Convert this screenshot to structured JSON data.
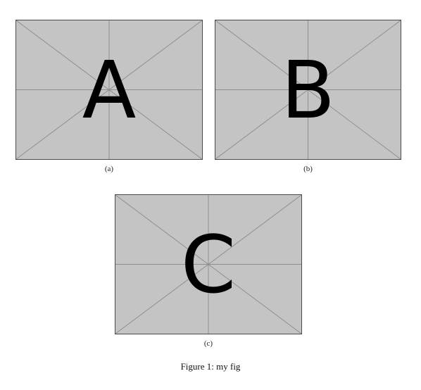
{
  "figure": {
    "caption_label": "Figure 1:",
    "caption_text": "my fig",
    "placeholder_color": "#c4c4c4",
    "subfigures": [
      {
        "letter": "A",
        "label": "(a)"
      },
      {
        "letter": "B",
        "label": "(b)"
      },
      {
        "letter": "C",
        "label": "(c)"
      }
    ]
  }
}
